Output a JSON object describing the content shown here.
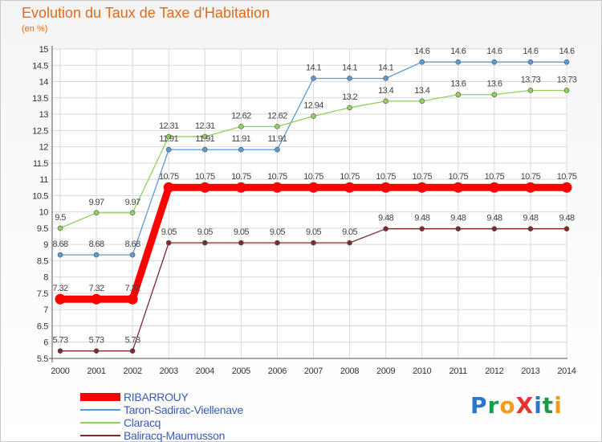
{
  "header": {
    "title": "Evolution du Taux de Taxe d'Habitation",
    "unit": "(en %)"
  },
  "logo": {
    "text": "ProXiti",
    "letters": [
      {
        "ch": "P",
        "color": "#2b76c8"
      },
      {
        "ch": "r",
        "color": "#1a9d4a"
      },
      {
        "ch": "o",
        "color": "#f29a1c"
      },
      {
        "ch": "X",
        "color": "#e3342f"
      },
      {
        "ch": "i",
        "color": "#2b76c8"
      },
      {
        "ch": "t",
        "color": "#1a9d4a"
      },
      {
        "ch": "i",
        "color": "#f29a1c"
      }
    ]
  },
  "chart_data": {
    "type": "line",
    "title": "Evolution du Taux de Taxe d'Habitation",
    "ylabel": "(en %)",
    "xlabel": "",
    "x": [
      "2000",
      "2001",
      "2002",
      "2003",
      "2004",
      "2005",
      "2006",
      "2007",
      "2008",
      "2009",
      "2010",
      "2011",
      "2012",
      "2013",
      "2014"
    ],
    "ylim": [
      5.5,
      15
    ],
    "yticks": [
      "5.5",
      "6",
      "6.5",
      "7",
      "7.5",
      "8",
      "8.5",
      "9",
      "9.5",
      "10",
      "10.5",
      "11",
      "11.5",
      "12",
      "12.5",
      "13",
      "13.5",
      "14",
      "14.5",
      "15"
    ],
    "grid": true,
    "legend_position": "bottom-left",
    "series": [
      {
        "name": "RIBARROUY",
        "color": "#ff0000",
        "emphasis": true,
        "values": [
          7.32,
          7.32,
          7.32,
          10.75,
          10.75,
          10.75,
          10.75,
          10.75,
          10.75,
          10.75,
          10.75,
          10.75,
          10.75,
          10.75,
          10.75
        ],
        "labels": [
          "7.32",
          "7.32",
          "7.32",
          "10.75",
          "10.75",
          "10.75",
          "10.75",
          "10.75",
          "10.75",
          "10.75",
          "10.75",
          "10.75",
          "10.75",
          "10.75",
          "10.75"
        ]
      },
      {
        "name": "Taron-Sadirac-Viellenave",
        "color": "#5b9bd5",
        "values": [
          8.68,
          8.68,
          8.68,
          11.91,
          11.91,
          11.91,
          11.91,
          14.1,
          14.1,
          14.1,
          14.6,
          14.6,
          14.6,
          14.6,
          14.6
        ],
        "labels": [
          "8.68",
          "8.68",
          "8.68",
          "11.91",
          "11.91",
          "11.91",
          "11.91",
          "14.1",
          "14.1",
          "14.1",
          "14.6",
          "14.6",
          "14.6",
          "14.6",
          "14.6"
        ]
      },
      {
        "name": "Claracq",
        "color": "#8fd15a",
        "values": [
          9.5,
          9.97,
          9.97,
          12.31,
          12.31,
          12.62,
          12.62,
          12.94,
          13.2,
          13.4,
          13.4,
          13.6,
          13.6,
          13.73,
          13.73
        ],
        "labels": [
          "9.5",
          "9.97",
          "9.97",
          "12.31",
          "12.31",
          "12.62",
          "12.62",
          "12.94",
          "13.2",
          "13.4",
          "13.4",
          "13.6",
          "13.6",
          "13.73",
          "13.73"
        ]
      },
      {
        "name": "Baliracq-Maumusson",
        "color": "#7a2b2b",
        "values": [
          5.73,
          5.73,
          5.73,
          9.05,
          9.05,
          9.05,
          9.05,
          9.05,
          9.05,
          9.48,
          9.48,
          9.48,
          9.48,
          9.48,
          9.48
        ],
        "labels": [
          "5.73",
          "5.73",
          "5.73",
          "9.05",
          "9.05",
          "9.05",
          "9.05",
          "9.05",
          "9.05",
          "9.48",
          "9.48",
          "9.48",
          "9.48",
          "9.48",
          "9.48"
        ]
      }
    ]
  }
}
